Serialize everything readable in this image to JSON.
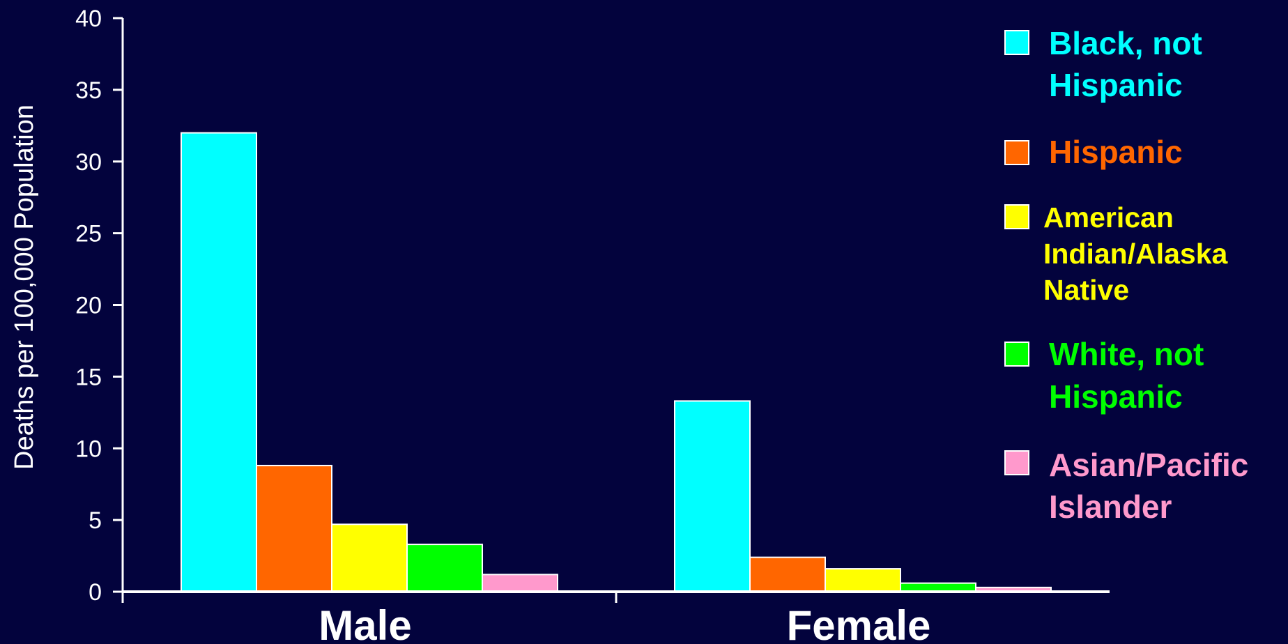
{
  "chart_data": {
    "type": "bar",
    "title": "",
    "xlabel": "",
    "ylabel": "Deaths per 100,000 Population",
    "ylim": [
      0,
      40
    ],
    "yticks": [
      0,
      5,
      10,
      15,
      20,
      25,
      30,
      35,
      40
    ],
    "categories": [
      "Male",
      "Female"
    ],
    "grid": false,
    "legend_position": "right",
    "series": [
      {
        "name": "Black, not Hispanic",
        "legend_lines": [
          "Black, not",
          "Hispanic"
        ],
        "color": "#00ffff",
        "values": [
          32.0,
          13.3
        ]
      },
      {
        "name": "Hispanic",
        "legend_lines": [
          "Hispanic"
        ],
        "color": "#ff6600",
        "values": [
          8.8,
          2.4
        ]
      },
      {
        "name": "American Indian/Alaska Native",
        "legend_lines": [
          "American",
          "Indian/Alaska",
          "Native"
        ],
        "color": "#ffff00",
        "values": [
          4.7,
          1.6
        ]
      },
      {
        "name": "White, not Hispanic",
        "legend_lines": [
          "White, not",
          "Hispanic"
        ],
        "color": "#00ff00",
        "values": [
          3.3,
          0.6
        ]
      },
      {
        "name": "Asian/Pacific Islander",
        "legend_lines": [
          "Asian/Pacific",
          "Islander"
        ],
        "color": "#ff99cc",
        "values": [
          1.2,
          0.3
        ]
      }
    ]
  },
  "colors": {
    "background": "#03033d",
    "axis": "#ffffff",
    "bar_outline": "#ffffff"
  }
}
